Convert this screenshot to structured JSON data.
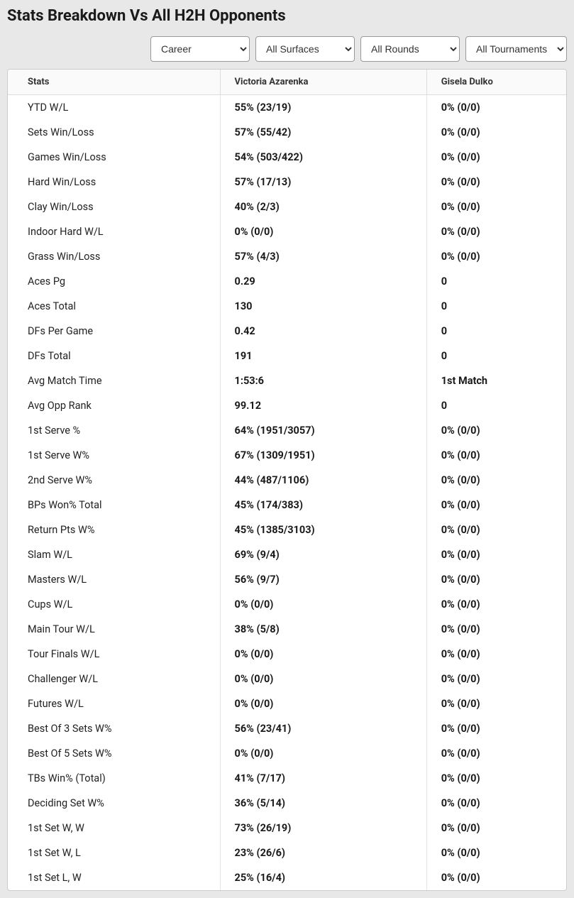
{
  "title": "Stats Breakdown Vs All H2H Opponents",
  "filters": {
    "period": {
      "selected": "Career",
      "options": [
        "Career"
      ]
    },
    "surface": {
      "selected": "All Surfaces",
      "options": [
        "All Surfaces"
      ]
    },
    "round": {
      "selected": "All Rounds",
      "options": [
        "All Rounds"
      ]
    },
    "tournament": {
      "selected": "All Tournaments",
      "options": [
        "All Tournaments"
      ]
    }
  },
  "columns": [
    "Stats",
    "Victoria Azarenka",
    "Gisela Dulko"
  ],
  "rows": [
    {
      "stat": "YTD W/L",
      "p1": "55% (23/19)",
      "p2": "0% (0/0)"
    },
    {
      "stat": "Sets Win/Loss",
      "p1": "57% (55/42)",
      "p2": "0% (0/0)"
    },
    {
      "stat": "Games Win/Loss",
      "p1": "54% (503/422)",
      "p2": "0% (0/0)"
    },
    {
      "stat": "Hard Win/Loss",
      "p1": "57% (17/13)",
      "p2": "0% (0/0)"
    },
    {
      "stat": "Clay Win/Loss",
      "p1": "40% (2/3)",
      "p2": "0% (0/0)"
    },
    {
      "stat": "Indoor Hard W/L",
      "p1": "0% (0/0)",
      "p2": "0% (0/0)"
    },
    {
      "stat": "Grass Win/Loss",
      "p1": "57% (4/3)",
      "p2": "0% (0/0)"
    },
    {
      "stat": "Aces Pg",
      "p1": "0.29",
      "p2": "0"
    },
    {
      "stat": "Aces Total",
      "p1": "130",
      "p2": "0"
    },
    {
      "stat": "DFs Per Game",
      "p1": "0.42",
      "p2": "0"
    },
    {
      "stat": "DFs Total",
      "p1": "191",
      "p2": "0"
    },
    {
      "stat": "Avg Match Time",
      "p1": "1:53:6",
      "p2": "1st Match"
    },
    {
      "stat": "Avg Opp Rank",
      "p1": "99.12",
      "p2": "0"
    },
    {
      "stat": "1st Serve %",
      "p1": "64% (1951/3057)",
      "p2": "0% (0/0)"
    },
    {
      "stat": "1st Serve W%",
      "p1": "67% (1309/1951)",
      "p2": "0% (0/0)"
    },
    {
      "stat": "2nd Serve W%",
      "p1": "44% (487/1106)",
      "p2": "0% (0/0)"
    },
    {
      "stat": "BPs Won% Total",
      "p1": "45% (174/383)",
      "p2": "0% (0/0)"
    },
    {
      "stat": "Return Pts W%",
      "p1": "45% (1385/3103)",
      "p2": "0% (0/0)"
    },
    {
      "stat": "Slam W/L",
      "p1": "69% (9/4)",
      "p2": "0% (0/0)"
    },
    {
      "stat": "Masters W/L",
      "p1": "56% (9/7)",
      "p2": "0% (0/0)"
    },
    {
      "stat": "Cups W/L",
      "p1": "0% (0/0)",
      "p2": "0% (0/0)"
    },
    {
      "stat": "Main Tour W/L",
      "p1": "38% (5/8)",
      "p2": "0% (0/0)"
    },
    {
      "stat": "Tour Finals W/L",
      "p1": "0% (0/0)",
      "p2": "0% (0/0)"
    },
    {
      "stat": "Challenger W/L",
      "p1": "0% (0/0)",
      "p2": "0% (0/0)"
    },
    {
      "stat": "Futures W/L",
      "p1": "0% (0/0)",
      "p2": "0% (0/0)"
    },
    {
      "stat": "Best Of 3 Sets W%",
      "p1": "56% (23/41)",
      "p2": "0% (0/0)"
    },
    {
      "stat": "Best Of 5 Sets W%",
      "p1": "0% (0/0)",
      "p2": "0% (0/0)"
    },
    {
      "stat": "TBs Win% (Total)",
      "p1": "41% (7/17)",
      "p2": "0% (0/0)"
    },
    {
      "stat": "Deciding Set W%",
      "p1": "36% (5/14)",
      "p2": "0% (0/0)"
    },
    {
      "stat": "1st Set W, W",
      "p1": "73% (26/19)",
      "p2": "0% (0/0)"
    },
    {
      "stat": "1st Set W, L",
      "p1": "23% (26/6)",
      "p2": "0% (0/0)"
    },
    {
      "stat": "1st Set L, W",
      "p1": "25% (16/4)",
      "p2": "0% (0/0)"
    }
  ]
}
